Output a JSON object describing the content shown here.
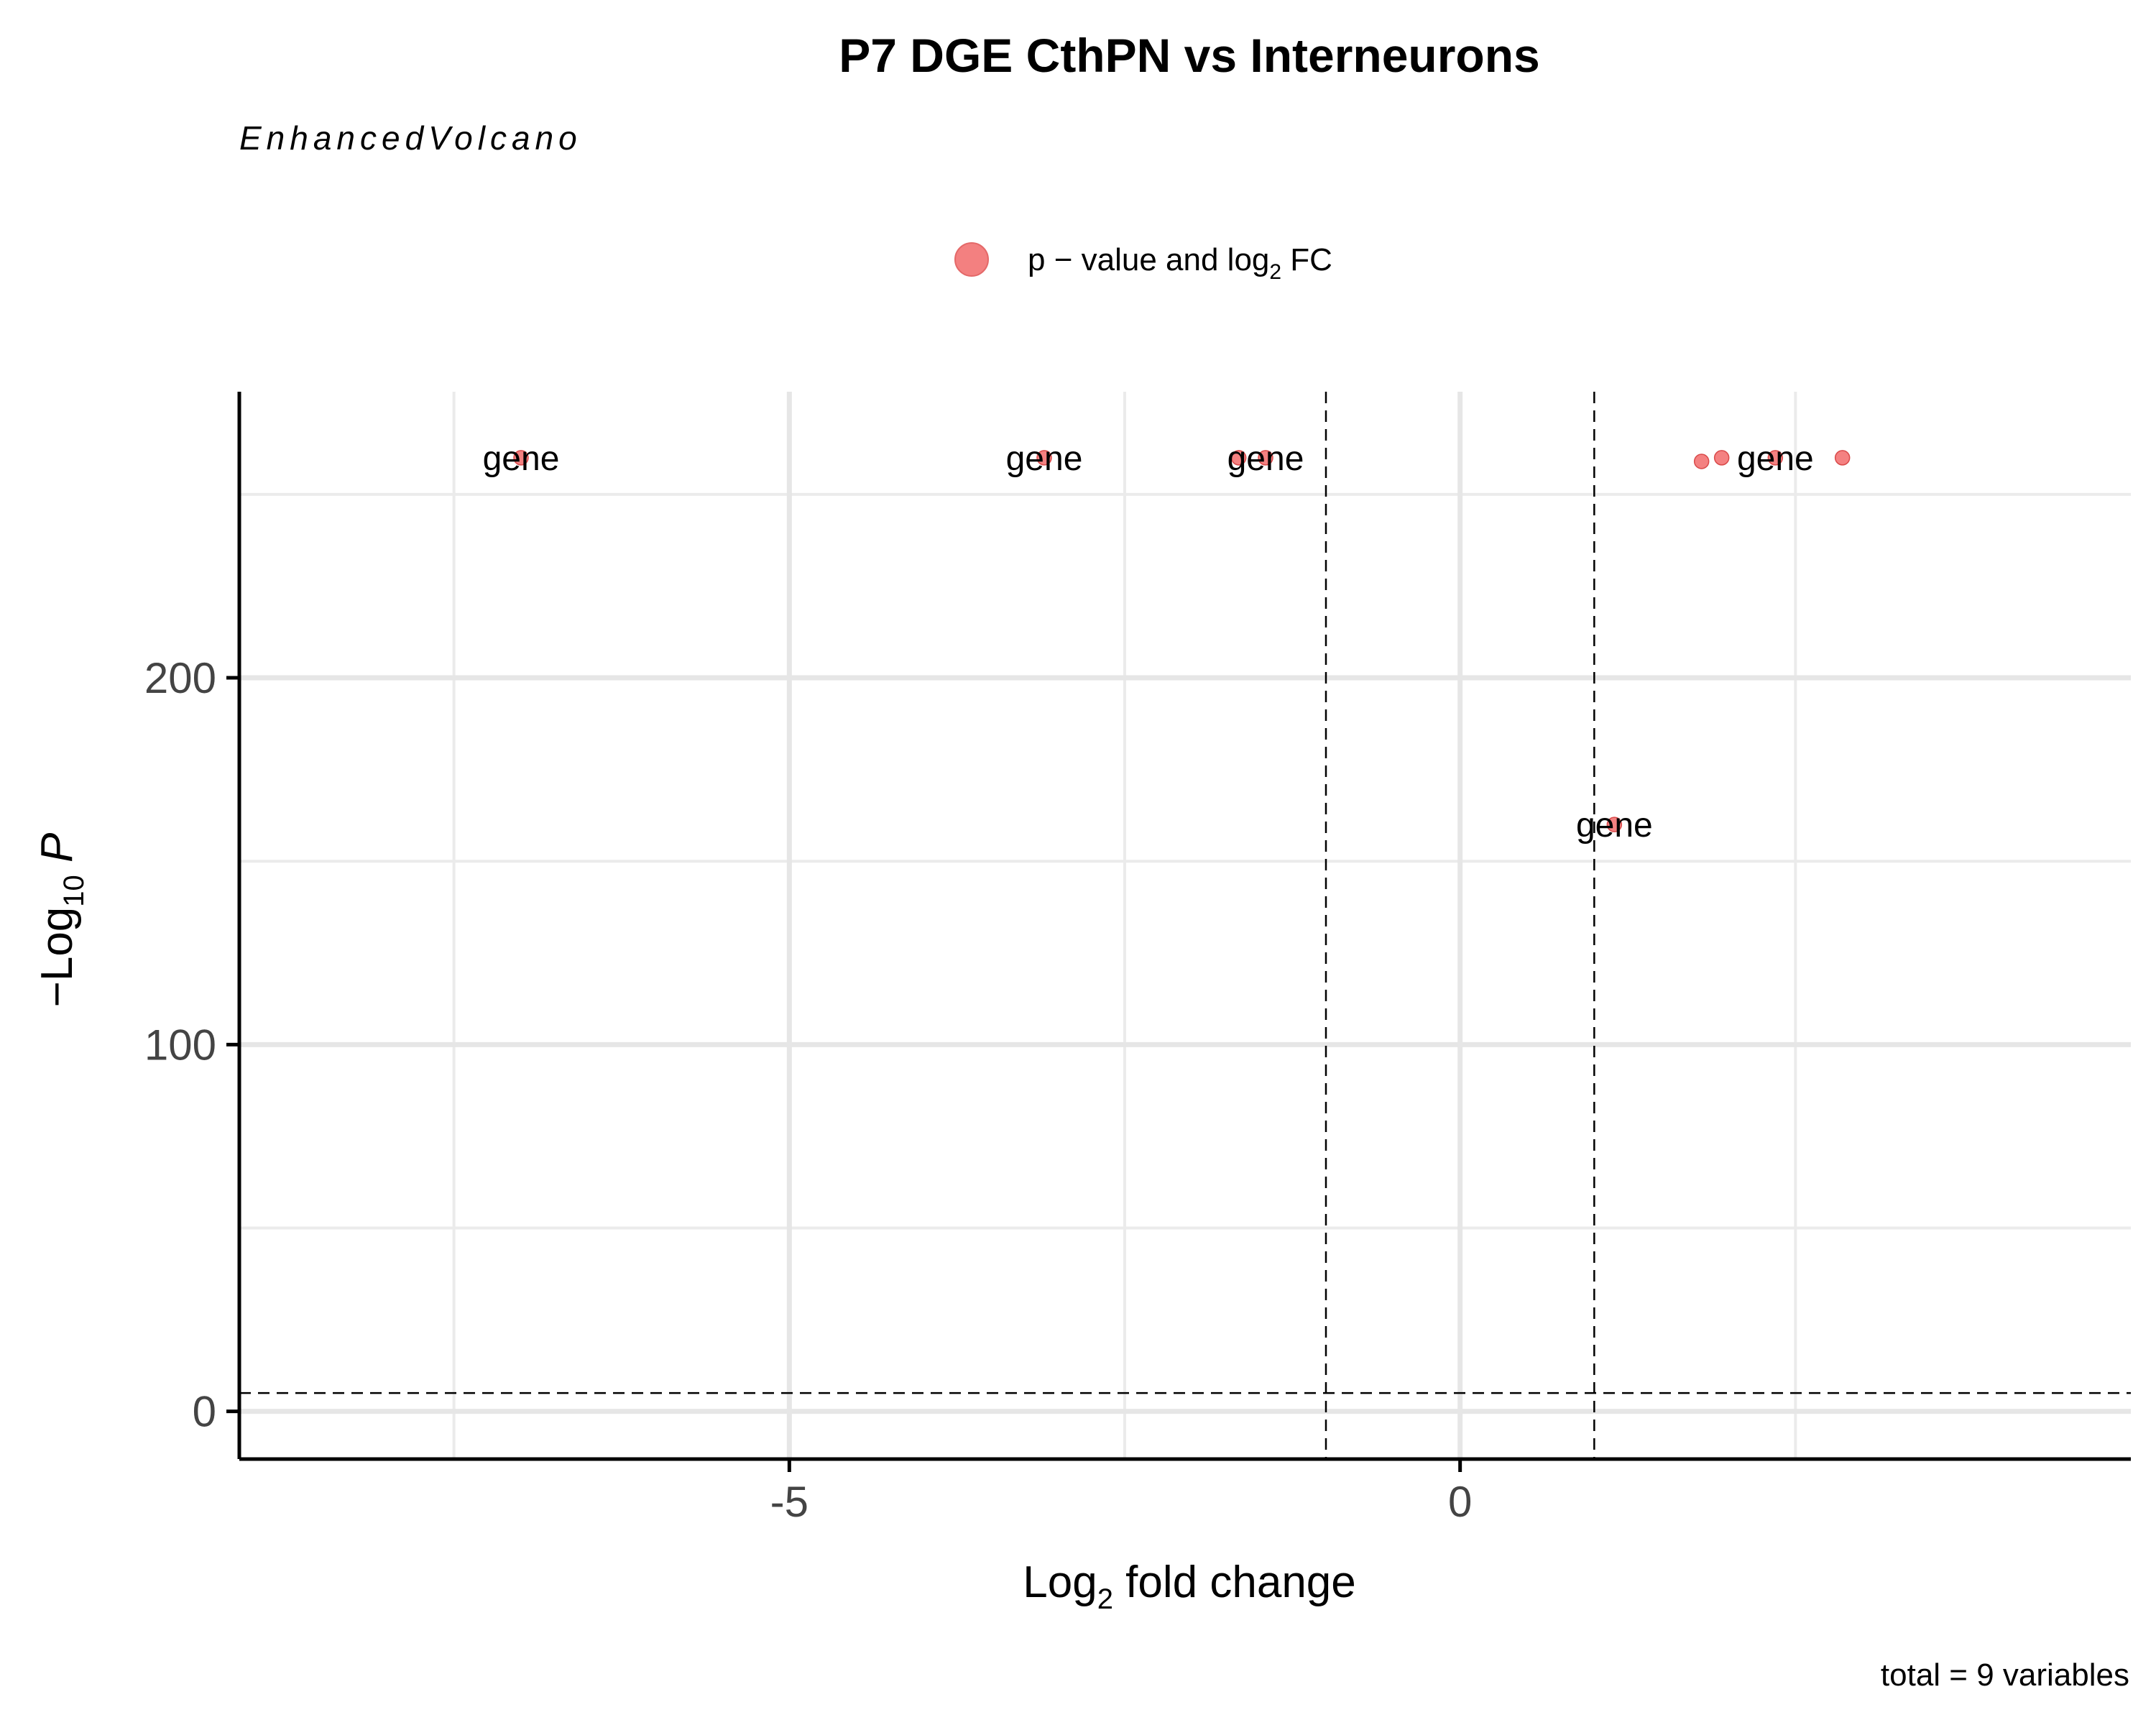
{
  "chart_data": {
    "type": "scatter",
    "title": "P7 DGE CthPN vs Interneurons",
    "subtitle": "EnhancedVolcano",
    "xlabel": "Log2 fold change",
    "ylabel": "−Log10 P",
    "caption": "total = 9 variables",
    "legend": {
      "position": "top",
      "entries": [
        {
          "label": "p − value and log2 FC",
          "color": "#f26b6b"
        }
      ]
    },
    "xlim": [
      -9.1,
      5.0
    ],
    "ylim": [
      -13,
      278
    ],
    "x_major_ticks": [
      -5,
      0
    ],
    "y_major_ticks": [
      0,
      100,
      200
    ],
    "x_minor_grid": [
      -7.5,
      -2.5,
      2.5
    ],
    "y_minor_grid": [
      50,
      150,
      250
    ],
    "fc_cutoffs": [
      -1,
      1
    ],
    "p_cutoff": 5,
    "grid": true,
    "points": [
      {
        "x": -7.0,
        "y": 260,
        "label": "gene"
      },
      {
        "x": -3.1,
        "y": 260,
        "label": "gene"
      },
      {
        "x": -1.65,
        "y": 260,
        "label": ""
      },
      {
        "x": -1.45,
        "y": 260,
        "label": "gene"
      },
      {
        "x": 1.15,
        "y": 160,
        "label": "gene"
      },
      {
        "x": 1.8,
        "y": 259,
        "label": ""
      },
      {
        "x": 1.95,
        "y": 260,
        "label": ""
      },
      {
        "x": 2.35,
        "y": 260,
        "label": "gene"
      },
      {
        "x": 2.85,
        "y": 260,
        "label": ""
      }
    ]
  }
}
